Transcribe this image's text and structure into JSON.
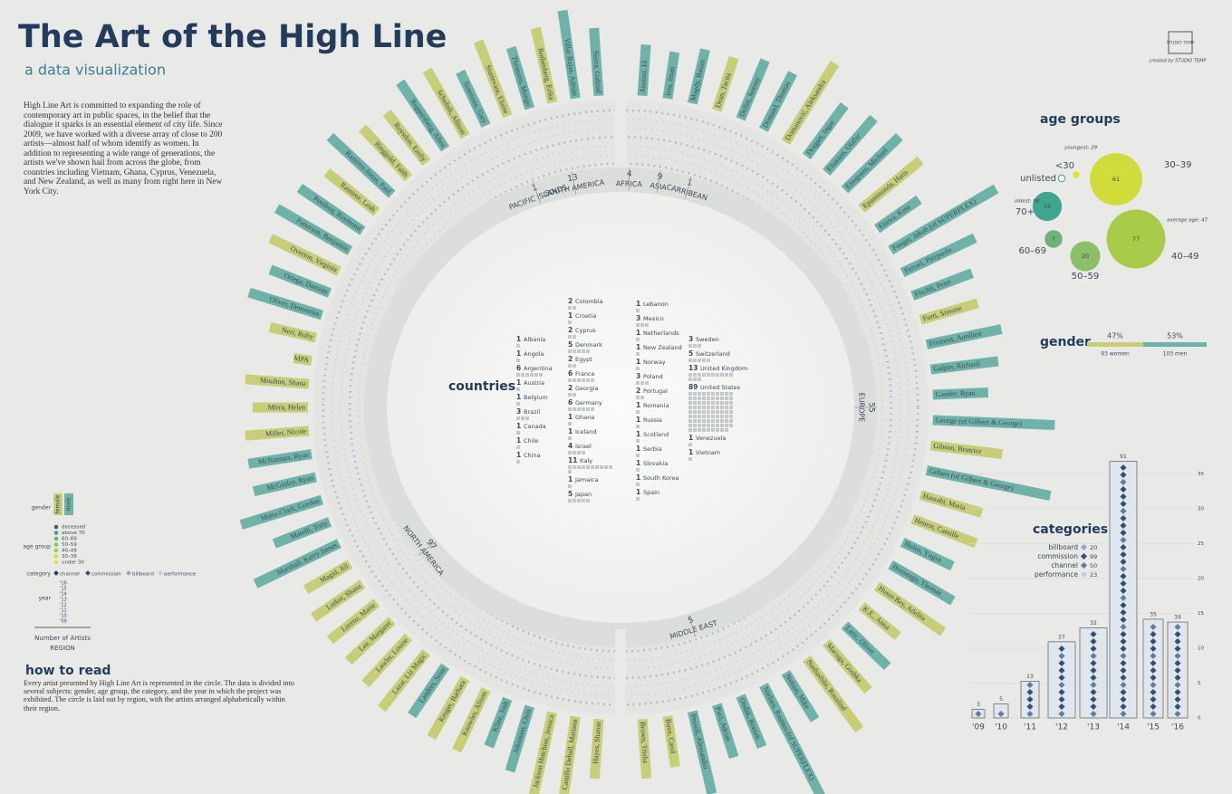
{
  "header": {
    "title": "The Art of the High Line",
    "subtitle": "a data visualization",
    "logo": "STUDIO TEMP",
    "credit": "created by STUDIO TEMP",
    "intro": "High Line Art is committed to expanding the role of contemporary art in public spaces, in the belief that the dialogue it sparks is an essential element of city life. Since 2009, we have worked with a diverse array of close to 200 artists—almost half of whom identify as women. In addition to representing a wide range of generations, the artists we've shown hail from across the globe, from countries including Vietnam, Ghana, Cyprus, Venezuela, and New Zealand, as well as many from right here in New York City."
  },
  "key": {
    "gender_label": "gender",
    "gender_items": [
      "female",
      "male"
    ],
    "age_label": "age group",
    "age_items": [
      "deceased",
      "above 70",
      "60–69",
      "50–59",
      "40–49",
      "30–39",
      "under 30"
    ],
    "category_label": "category",
    "category_items": [
      "channel",
      "commission",
      "billboard",
      "performance"
    ],
    "year_label": "year",
    "year_items": [
      "'16",
      "'15",
      "'14",
      "'13",
      "'12",
      "'11",
      "'10",
      "'09"
    ],
    "scale_label": "Number of Artists",
    "scale_sub": "REGION"
  },
  "how_to_read": {
    "title": "how to read",
    "text": "Every artist presented by High Line Art is represented in the circle. The data is divided into several subjects: gender, age group, the category, and the year in which the project was exhibited. The circle is laid out by region, with the artists arranged alphabetically within their region."
  },
  "chart_data": [
    {
      "type": "radial",
      "genders": [
        {
          "name": "female",
          "color": "#c8cd78"
        },
        {
          "name": "male",
          "color": "#6fb3a8"
        }
      ],
      "regions": [
        {
          "name": "PACIFIC ISLANDS",
          "count": 1
        },
        {
          "name": "SOUTH AMERICA",
          "count": 13
        },
        {
          "name": "AFRICA",
          "count": 4
        },
        {
          "name": "ASIA",
          "count": 9
        },
        {
          "name": "CARRIBEAN",
          "count": 1
        },
        {
          "name": "EUROPE",
          "count": 55
        },
        {
          "name": "MIDDLE EAST",
          "count": 5
        },
        {
          "name": "NORTH AMERICA",
          "count": 97
        }
      ],
      "artists_right": [
        {
          "name": "Anatsui, El",
          "gender": "male"
        },
        {
          "name": "Issa, Iman",
          "gender": "male"
        },
        {
          "name": "Magdy, Basim",
          "gender": "male"
        },
        {
          "name": "Dean, Tacita",
          "gender": "female"
        },
        {
          "name": "Deller, Jeremy",
          "gender": "male"
        },
        {
          "name": "Demand, Thomas",
          "gender": "male"
        },
        {
          "name": "Domanović, Aleksandra",
          "gender": "female"
        },
        {
          "name": "Dragset, Ingar",
          "gender": "male"
        },
        {
          "name": "Eliasson, Olafur",
          "gender": "male"
        },
        {
          "name": "Elmgreen, Michael",
          "gender": "male"
        },
        {
          "name": "Epaminonda, Haris",
          "gender": "female"
        },
        {
          "name": "Ezawa, Kota",
          "gender": "male"
        },
        {
          "name": "Fenger, Jakob (of SUPERFLEX)",
          "gender": "male"
        },
        {
          "name": "Ferrari, Pierpaolo",
          "gender": "male"
        },
        {
          "name": "Fischli, Peter",
          "gender": "male"
        },
        {
          "name": "Forti, Simone",
          "gender": "female"
        },
        {
          "name": "Froment, Aurélien",
          "gender": "male"
        },
        {
          "name": "Galpin, Richard",
          "gender": "male"
        },
        {
          "name": "Gander, Ryan",
          "gender": "male"
        },
        {
          "name": "George (of Gilbert & George)",
          "gender": "male"
        },
        {
          "name": "Gibson, Beatrice",
          "gender": "female"
        },
        {
          "name": "Gilbert (of Gilbert & George)",
          "gender": "male"
        },
        {
          "name": "Hassabi, Maria",
          "gender": "female"
        },
        {
          "name": "Henrot, Camille",
          "gender": "female"
        },
        {
          "name": "Holen, Yngve",
          "gender": "male"
        },
        {
          "name": "Houseago, Thomas",
          "gender": "male"
        },
        {
          "name": "Husni-Bey, Adelita",
          "gender": "female"
        },
        {
          "name": "K.E., Anna",
          "gender": "female"
        },
        {
          "name": "Laric, Oliver",
          "gender": "male"
        },
        {
          "name": "Macuga, Goshka",
          "gender": "female"
        },
        {
          "name": "Nashashibi, Rosalind",
          "gender": "female"
        },
        {
          "name": "Nelson, Mike",
          "gender": "male"
        },
        {
          "name": "Nielsen, Rasmus (of SUPERFLEX)",
          "gender": "male"
        },
        {
          "name": "Ondák, Roman",
          "gender": "male"
        },
        {
          "name": "Paci, Adrian",
          "gender": "male"
        },
        {
          "name": "Pessoli, Alessandro",
          "gender": "male"
        },
        {
          "name": "Bove, Carol",
          "gender": "female"
        },
        {
          "name": "Brown, Trisha",
          "gender": "female"
        }
      ],
      "artists_left": [
        {
          "name": "Sierra, Gabriel",
          "gender": "male"
        },
        {
          "name": "Villar Rojas, Adrián",
          "gender": "male"
        },
        {
          "name": "Rothenberg, Erika",
          "gender": "female"
        },
        {
          "name": "Thomson, Mungo",
          "gender": "male"
        },
        {
          "name": "Sturtevant, Elaine",
          "gender": "female"
        },
        {
          "name": "Simmons, Gary",
          "gender": "male"
        },
        {
          "name": "Schulnik, Allison",
          "gender": "female"
        },
        {
          "name": "Ruppersberg, Allen",
          "gender": "male"
        },
        {
          "name": "Roysdon, Emily",
          "gender": "female"
        },
        {
          "name": "Ringgold, Faith",
          "gender": "female"
        },
        {
          "name": "Ramírez-Jonas, Paul",
          "gender": "male"
        },
        {
          "name": "Raintree, Leah",
          "gender": "female"
        },
        {
          "name": "Pettibon, Raymond",
          "gender": "male"
        },
        {
          "name": "Patterson, Benjamin",
          "gender": "male"
        },
        {
          "name": "Overton, Virginia",
          "gender": "female"
        },
        {
          "name": "Ortega, Damián",
          "gender": "male"
        },
        {
          "name": "Oliver, Demetrius",
          "gender": "male"
        },
        {
          "name": "Neri, Ruby",
          "gender": "female"
        },
        {
          "name": "MPA",
          "gender": "female"
        },
        {
          "name": "Moulton, Shana",
          "gender": "female"
        },
        {
          "name": "Mirra, Helen",
          "gender": "female"
        },
        {
          "name": "Miller, Nicole",
          "gender": "female"
        },
        {
          "name": "McNamara, Ryan",
          "gender": "male"
        },
        {
          "name": "McGinley, Ryan",
          "gender": "male"
        },
        {
          "name": "Matta-Clark, Gordon",
          "gender": "male"
        },
        {
          "name": "Matelli, Tony",
          "gender": "male"
        },
        {
          "name": "Marshall, Kerry James",
          "gender": "male"
        },
        {
          "name": "Magid, Jill",
          "gender": "female"
        },
        {
          "name": "Lutker, Shana",
          "gender": "female"
        },
        {
          "name": "Lorenz, Marie",
          "gender": "female"
        },
        {
          "name": "Lee, Margaret",
          "gender": "female"
        },
        {
          "name": "Lawler, Louise",
          "gender": "female"
        },
        {
          "name": "Lazar, Liz Magic",
          "gender": "female"
        },
        {
          "name": "Landers, Sean",
          "gender": "male"
        },
        {
          "name": "Kruger, Barbara",
          "gender": "female"
        },
        {
          "name": "Knowles, Alison",
          "gender": "female"
        },
        {
          "name": "Kline, Josh",
          "gender": "male"
        },
        {
          "name": "Johanson, Chris",
          "gender": "male"
        },
        {
          "name": "Jackson Hutchins, Jessica",
          "gender": "female"
        },
        {
          "name": "Castillo Deball, Mariana",
          "gender": "female"
        },
        {
          "name": "Hayes, Sharon",
          "gender": "female"
        }
      ]
    },
    {
      "type": "squares",
      "title": "countries",
      "color": "#c5c8cb",
      "categories": [
        "Albania",
        "Angola",
        "Argentina",
        "Austria",
        "Belgium",
        "Brazil",
        "Canada",
        "Chile",
        "China",
        "Colombia",
        "Croatia",
        "Cyprus",
        "Denmark",
        "Egypt",
        "France",
        "Georgia",
        "Germany",
        "Ghana",
        "Iceland",
        "Israel",
        "Italy",
        "Jamaica",
        "Japan",
        "Lebanon",
        "Mexico",
        "Netherlands",
        "New Zealand",
        "Norway",
        "Poland",
        "Portugal",
        "Romania",
        "Russia",
        "Scotland",
        "Serbia",
        "Slovakia",
        "South Korea",
        "Spain",
        "Sweden",
        "Switzerland",
        "United Kingdom",
        "United States",
        "Venezuela",
        "Vietnam"
      ],
      "values": [
        1,
        1,
        6,
        1,
        1,
        3,
        1,
        1,
        1,
        2,
        1,
        2,
        5,
        2,
        6,
        2,
        6,
        1,
        1,
        4,
        11,
        1,
        5,
        1,
        3,
        1,
        1,
        1,
        3,
        2,
        1,
        1,
        1,
        1,
        1,
        1,
        1,
        3,
        5,
        13,
        89,
        1,
        1
      ]
    },
    {
      "type": "bubble",
      "title": "age groups",
      "categories": [
        "<30",
        "30–39",
        "40–49",
        "50–59",
        "60–69",
        "70+",
        "unlisted"
      ],
      "values": [
        1,
        61,
        77,
        20,
        7,
        19,
        1
      ],
      "colors": [
        "#e2e232",
        "#cfdc3c",
        "#a8cb4a",
        "#8cc066",
        "#6fb37a",
        "#3fa58c",
        "#ffffff"
      ],
      "annotations": [
        "youngest: 29",
        "oldest: 98",
        "average age: 47"
      ]
    },
    {
      "type": "gender",
      "title": "gender",
      "values": [
        47,
        53
      ],
      "value_labels": [
        "47%",
        "53%"
      ],
      "labels": [
        "93 women",
        "103 men"
      ],
      "colors": [
        "#c8cd78",
        "#6fb3a8"
      ]
    },
    {
      "type": "bar",
      "title": "categories",
      "categories": [
        "'09",
        "'10",
        "'11",
        "'12",
        "'13",
        "'14",
        "'15",
        "'16"
      ],
      "values": [
        3,
        5,
        13,
        27,
        32,
        91,
        35,
        34
      ],
      "ylim": [
        0,
        95
      ],
      "y2lim": [
        0,
        37
      ],
      "y2ticks": [
        0,
        5,
        10,
        15,
        20,
        25,
        30,
        35
      ],
      "legend": [
        {
          "name": "billboard",
          "count": 20,
          "color": "#8fa9c4"
        },
        {
          "name": "commission",
          "count": 99,
          "color": "#34506e"
        },
        {
          "name": "channel",
          "count": 50,
          "color": "#5f7d9c"
        },
        {
          "name": "performance",
          "count": 23,
          "color": "#bccfe0"
        }
      ]
    }
  ]
}
